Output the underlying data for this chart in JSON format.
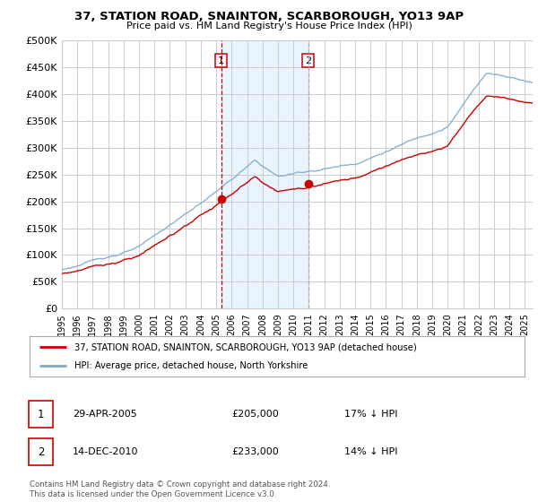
{
  "title": "37, STATION ROAD, SNAINTON, SCARBOROUGH, YO13 9AP",
  "subtitle": "Price paid vs. HM Land Registry's House Price Index (HPI)",
  "ylim": [
    0,
    500000
  ],
  "yticks": [
    0,
    50000,
    100000,
    150000,
    200000,
    250000,
    300000,
    350000,
    400000,
    450000,
    500000
  ],
  "xmin": 1995.0,
  "xmax": 2025.5,
  "purchase1": {
    "date_num": 2005.32,
    "price": 205000,
    "label": "1",
    "text": "29-APR-2005",
    "amount": "£205,000",
    "hpi_diff": "17% ↓ HPI"
  },
  "purchase2": {
    "date_num": 2010.95,
    "price": 233000,
    "label": "2",
    "text": "14-DEC-2010",
    "amount": "£233,000",
    "hpi_diff": "14% ↓ HPI"
  },
  "legend_property": "37, STATION ROAD, SNAINTON, SCARBOROUGH, YO13 9AP (detached house)",
  "legend_hpi": "HPI: Average price, detached house, North Yorkshire",
  "footer": "Contains HM Land Registry data © Crown copyright and database right 2024.\nThis data is licensed under the Open Government Licence v3.0.",
  "property_color": "#cc0000",
  "hpi_color": "#7eaacc",
  "shading_color": "#ddeeff",
  "vline1_color": "#cc0000",
  "vline2_color": "#aaaacc",
  "background_color": "#ffffff",
  "grid_color": "#cccccc"
}
